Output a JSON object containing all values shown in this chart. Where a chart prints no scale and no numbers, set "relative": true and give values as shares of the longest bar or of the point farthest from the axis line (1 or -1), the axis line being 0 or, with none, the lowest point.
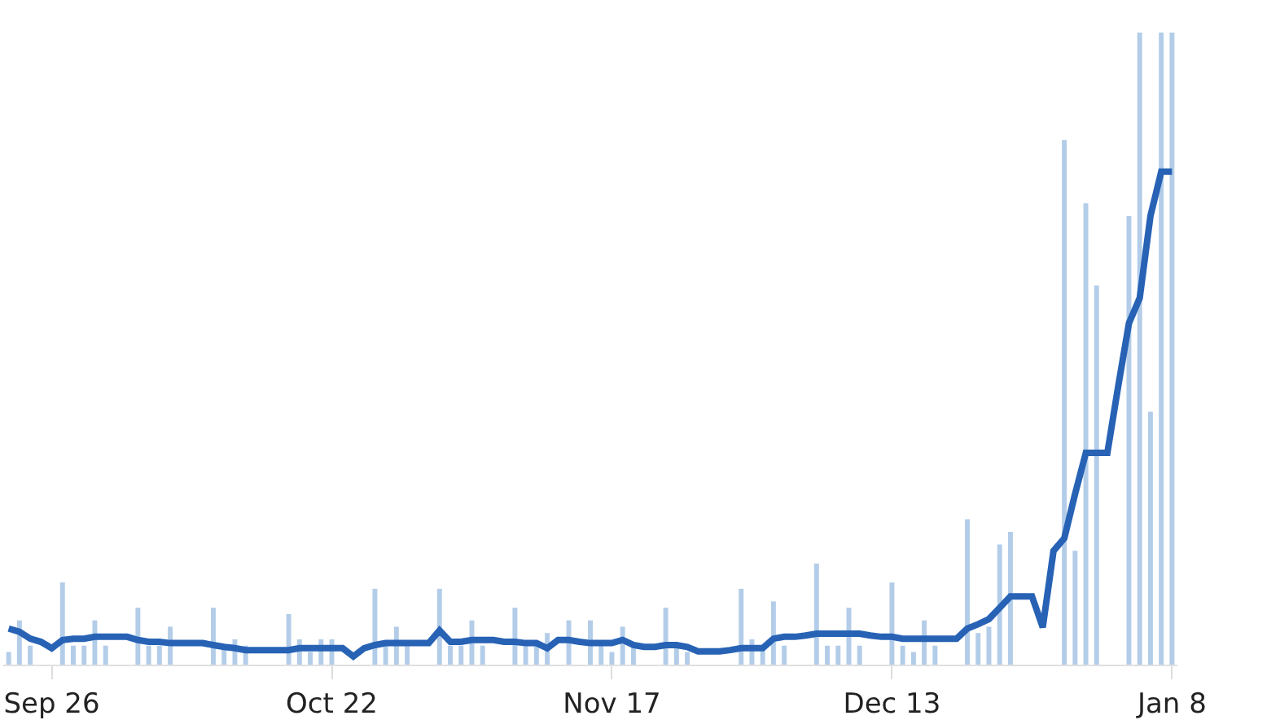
{
  "chart_data": {
    "type": "bar",
    "relative": true,
    "legend": false,
    "tick_labels": "x",
    "categories": [
      null,
      null,
      null,
      null,
      "Sep 26",
      null,
      null,
      null,
      null,
      null,
      null,
      null,
      null,
      null,
      null,
      null,
      null,
      null,
      null,
      null,
      null,
      null,
      null,
      null,
      null,
      null,
      null,
      null,
      null,
      null,
      "Oct 22",
      null,
      null,
      null,
      null,
      null,
      null,
      null,
      null,
      null,
      null,
      null,
      null,
      null,
      null,
      null,
      null,
      null,
      null,
      null,
      null,
      null,
      null,
      null,
      null,
      null,
      "Nov 17",
      null,
      null,
      null,
      null,
      null,
      null,
      null,
      null,
      null,
      null,
      null,
      null,
      null,
      null,
      null,
      null,
      null,
      null,
      null,
      null,
      null,
      null,
      null,
      null,
      null,
      "Dec 13",
      null,
      null,
      null,
      null,
      null,
      null,
      null,
      null,
      null,
      null,
      null,
      null,
      null,
      null,
      null,
      null,
      null,
      null,
      null,
      null,
      null,
      null,
      null,
      null,
      null,
      "Jan 8"
    ],
    "series": [
      {
        "color": "#b3cde9",
        "values": [
          0.02,
          0.07,
          0.03,
          0,
          0,
          0.13,
          0.03,
          0.03,
          0.07,
          0.03,
          0,
          0,
          0.09,
          0.03,
          0.03,
          0.06,
          0,
          0,
          0,
          0.09,
          0.03,
          0.04,
          0.03,
          0,
          0,
          0,
          0.08,
          0.04,
          0.02,
          0.04,
          0.04,
          0,
          0,
          0,
          0.12,
          0.03,
          0.06,
          0.03,
          0,
          0,
          0.12,
          0.03,
          0.03,
          0.07,
          0.03,
          0,
          0,
          0.09,
          0.03,
          0.03,
          0.05,
          0,
          0.07,
          0,
          0.07,
          0.03,
          0.02,
          0.06,
          0.03,
          0,
          0,
          0.09,
          0.03,
          0.02,
          0,
          0,
          0,
          0,
          0.12,
          0.04,
          0.03,
          0.1,
          0.03,
          0,
          0,
          0.16,
          0.03,
          0.03,
          0.09,
          0.03,
          0,
          0,
          0.13,
          0.03,
          0.02,
          0.07,
          0.03,
          0,
          0,
          0.23,
          0.05,
          0.06,
          0.19,
          0.21,
          0,
          0,
          0,
          0,
          0.83,
          0.18,
          0.73,
          0.6,
          0,
          0,
          0.71,
          1,
          0.4,
          1,
          1
        ]
      },
      {
        "type": "line",
        "color": "#2762b5",
        "marker": "none",
        "line_style": "solid",
        "values": [
          0.057,
          0.052,
          0.041,
          0.036,
          0.026,
          0.039,
          0.041,
          0.041,
          0.044,
          0.044,
          0.044,
          0.044,
          0.039,
          0.036,
          0.036,
          0.034,
          0.034,
          0.034,
          0.034,
          0.031,
          0.028,
          0.026,
          0.023,
          0.023,
          0.023,
          0.023,
          0.023,
          0.026,
          0.026,
          0.026,
          0.026,
          0.026,
          0.013,
          0.026,
          0.031,
          0.034,
          0.034,
          0.034,
          0.034,
          0.034,
          0.054,
          0.036,
          0.036,
          0.039,
          0.039,
          0.039,
          0.036,
          0.036,
          0.034,
          0.034,
          0.026,
          0.039,
          0.039,
          0.036,
          0.034,
          0.034,
          0.034,
          0.039,
          0.031,
          0.028,
          0.028,
          0.031,
          0.031,
          0.028,
          0.021,
          0.021,
          0.021,
          0.023,
          0.026,
          0.026,
          0.026,
          0.041,
          0.044,
          0.044,
          0.046,
          0.049,
          0.049,
          0.049,
          0.049,
          0.049,
          0.046,
          0.044,
          0.044,
          0.041,
          0.041,
          0.041,
          0.041,
          0.041,
          0.041,
          0.057,
          0.064,
          0.072,
          0.09,
          0.108,
          0.108,
          0.108,
          0.059,
          0.18,
          0.2,
          0.27,
          0.335,
          0.335,
          0.335,
          0.44,
          0.54,
          0.58,
          0.71,
          0.78,
          0.78
        ]
      }
    ]
  }
}
